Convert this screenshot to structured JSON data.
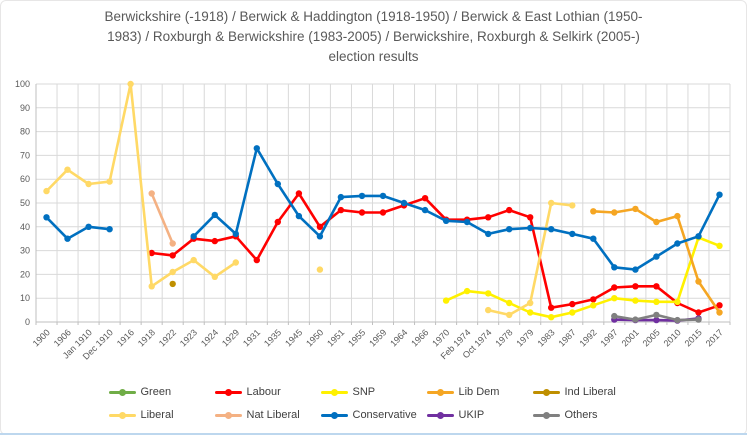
{
  "frame": {
    "border_color": "#e7e6e6",
    "bottom_edge_color": "#bdd7ee"
  },
  "chart_data": {
    "type": "line",
    "title": "Berwickshire (-1918) / Berwick & Haddington (1918-1950) / Berwick & East Lothian (1950-1983) / Roxburgh & Berwickshire (1983-2005) / Berwickshire, Roxburgh & Selkirk (2005-) election results",
    "title_lines": [
      "Berwickshire (-1918) / Berwick & Haddington (1918-1950) / Berwick & East Lothian (1950-",
      "1983) / Roxburgh & Berwickshire (1983-2005) / Berwickshire, Roxburgh & Selkirk (2005-)",
      "election results"
    ],
    "ylim": [
      0,
      100
    ],
    "y_ticks": [
      0,
      10,
      20,
      30,
      40,
      50,
      60,
      70,
      80,
      90,
      100
    ],
    "grid": true,
    "legend_position": "bottom",
    "colors": {
      "grid": "#d9d9d9",
      "axis": "#bfbfbf",
      "tick_text": "#595959",
      "title_text": "#595959",
      "legend_text": "#404040"
    },
    "categories": [
      "1900",
      "1906",
      "Jan 1910",
      "Dec 1910",
      "1916",
      "1918",
      "1922",
      "1923",
      "1924",
      "1929",
      "1931",
      "1935",
      "1945",
      "1950",
      "1951",
      "1955",
      "1959",
      "1964",
      "1966",
      "1970",
      "Feb 1974",
      "Oct 1974",
      "1978",
      "1979",
      "1983",
      "1987",
      "1992",
      "1997",
      "2001",
      "2005",
      "2010",
      "2015",
      "2017"
    ],
    "series": [
      {
        "name": "Green",
        "color": "#70ad47",
        "values": [
          null,
          null,
          null,
          null,
          null,
          null,
          null,
          null,
          null,
          null,
          null,
          null,
          null,
          null,
          null,
          null,
          null,
          null,
          null,
          null,
          null,
          null,
          null,
          null,
          null,
          null,
          null,
          null,
          null,
          null,
          null,
          null,
          null
        ]
      },
      {
        "name": "Labour",
        "color": "#ff0000",
        "values": [
          null,
          null,
          null,
          null,
          null,
          29,
          28,
          35,
          34,
          36,
          26,
          42,
          54,
          40,
          47,
          46,
          46,
          49,
          52,
          43,
          43,
          44,
          47,
          44,
          6,
          7.5,
          9.5,
          14.5,
          15,
          15,
          8,
          4,
          7
        ]
      },
      {
        "name": "SNP",
        "color": "#fff100",
        "values": [
          null,
          null,
          null,
          null,
          null,
          null,
          null,
          null,
          null,
          null,
          null,
          null,
          null,
          null,
          null,
          null,
          null,
          null,
          null,
          9,
          13,
          12,
          8,
          4,
          2,
          4,
          7,
          10,
          9,
          8.5,
          8.5,
          35.5,
          32
        ]
      },
      {
        "name": "Lib Dem",
        "color": "#f5a623",
        "values": [
          null,
          null,
          null,
          null,
          null,
          null,
          null,
          null,
          null,
          null,
          null,
          null,
          null,
          null,
          null,
          null,
          null,
          null,
          null,
          null,
          null,
          null,
          null,
          null,
          null,
          null,
          46.5,
          46,
          47.5,
          42,
          44.5,
          17,
          4
        ]
      },
      {
        "name": "Ind Liberal",
        "color": "#bf8f00",
        "values": [
          null,
          null,
          null,
          null,
          null,
          null,
          16,
          null,
          null,
          null,
          null,
          null,
          null,
          null,
          null,
          null,
          null,
          null,
          null,
          null,
          null,
          null,
          null,
          null,
          null,
          null,
          null,
          null,
          null,
          null,
          null,
          null,
          null
        ]
      },
      {
        "name": "Liberal",
        "color": "#ffd966",
        "values": [
          55,
          64,
          58,
          59,
          100,
          15,
          21,
          26,
          19,
          25,
          null,
          null,
          null,
          22,
          null,
          null,
          null,
          null,
          null,
          null,
          null,
          5,
          3,
          8,
          50,
          49,
          null,
          null,
          null,
          null,
          null,
          null,
          null
        ]
      },
      {
        "name": "Nat Liberal",
        "color": "#f4b183",
        "values": [
          null,
          null,
          null,
          null,
          null,
          54,
          33,
          null,
          null,
          null,
          null,
          null,
          null,
          null,
          null,
          null,
          null,
          null,
          null,
          null,
          null,
          null,
          null,
          null,
          null,
          null,
          null,
          null,
          null,
          null,
          null,
          null,
          null
        ]
      },
      {
        "name": "Conservative",
        "color": "#0070c0",
        "values": [
          44,
          35,
          40,
          39,
          null,
          null,
          null,
          36,
          45,
          37,
          73,
          58,
          44.5,
          36,
          52.5,
          53,
          53,
          50,
          47,
          42.5,
          42,
          37,
          39,
          39.5,
          39,
          37,
          35,
          23,
          22,
          27.5,
          33,
          36,
          53.5
        ]
      },
      {
        "name": "UKIP",
        "color": "#7030a0",
        "values": [
          null,
          null,
          null,
          null,
          null,
          null,
          null,
          null,
          null,
          null,
          null,
          null,
          null,
          null,
          null,
          null,
          null,
          null,
          null,
          null,
          null,
          null,
          null,
          null,
          null,
          null,
          null,
          1,
          0.8,
          0.8,
          0.6,
          1.5,
          null
        ]
      },
      {
        "name": "Others",
        "color": "#808080",
        "values": [
          null,
          null,
          null,
          null,
          null,
          null,
          null,
          null,
          null,
          null,
          null,
          null,
          null,
          null,
          null,
          null,
          null,
          null,
          null,
          null,
          null,
          null,
          null,
          null,
          null,
          null,
          null,
          2.5,
          1,
          3,
          0.8,
          1,
          null
        ]
      }
    ],
    "legend_rows": [
      [
        "Green",
        "Labour",
        "SNP",
        "Lib Dem",
        "Ind Liberal"
      ],
      [
        "Liberal",
        "Nat Liberal",
        "Conservative",
        "UKIP",
        "Others"
      ]
    ]
  }
}
